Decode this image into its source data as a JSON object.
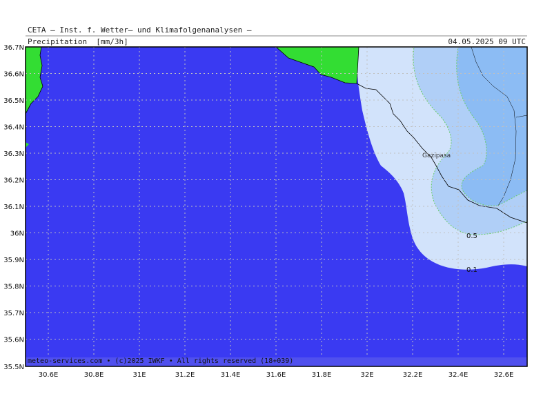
{
  "header": {
    "source": "CETA — Inst. f. Wetter— und Klimafolgenanalysen —",
    "parameter": "Precipitation  [mm/3h]",
    "valid_time": "04.05.2025 09 UTC"
  },
  "map": {
    "lat_ticks": [
      "36.7N",
      "36.6N",
      "36.5N",
      "36.4N",
      "36.3N",
      "36.2N",
      "36.1N",
      "36N",
      "35.9N",
      "35.8N",
      "35.7N",
      "35.6N",
      "35.5N"
    ],
    "lon_ticks": [
      "30.6E",
      "30.8E",
      "31E",
      "31.2E",
      "31.4E",
      "31.6E",
      "31.8E",
      "32E",
      "32.2E",
      "32.4E",
      "32.6E"
    ],
    "place_label": "Gazipasa",
    "contour_labels": [
      "0.5",
      "0.1"
    ],
    "colors": {
      "sea": "#3a3af2",
      "land": "#33dd33",
      "precip_0_1": "#d2e3fb",
      "precip_0_5": "#b0cff7",
      "precip_1": "#8cbcf4"
    }
  },
  "footer": {
    "copyright": "meteo-services.com • (c)2025 IWKF • All rights reserved (18+039)"
  }
}
